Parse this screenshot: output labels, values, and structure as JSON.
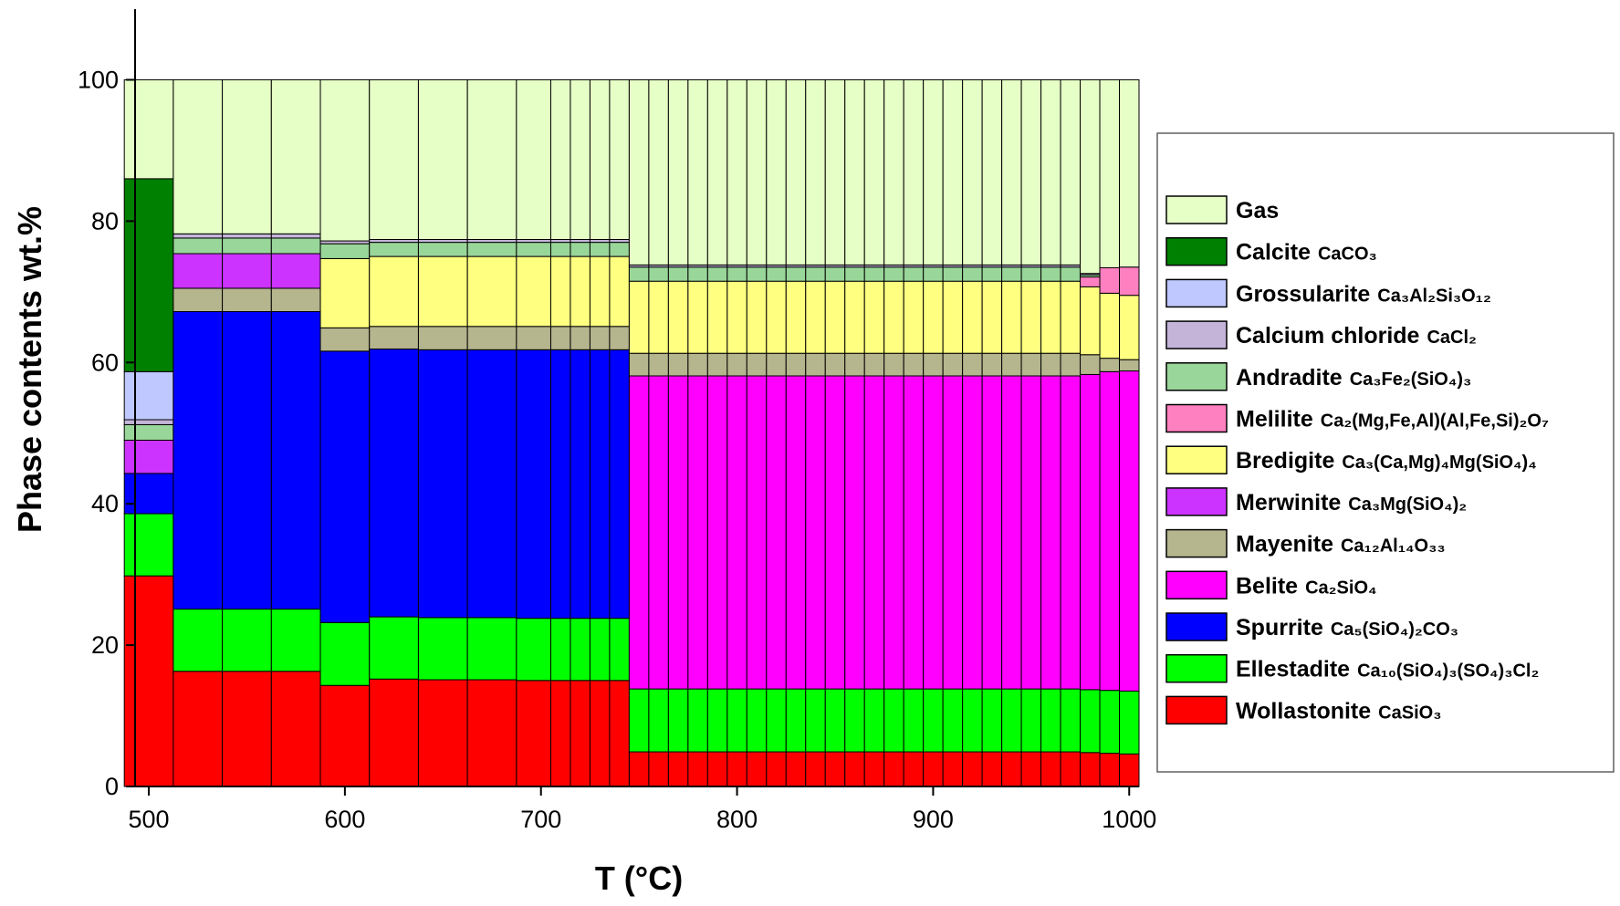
{
  "chart_data": {
    "type": "bar",
    "stacked": true,
    "xlabel": "T (°C)",
    "ylabel": "Phase contents wt.%",
    "xlim": [
      493,
      1005
    ],
    "ylim": [
      0,
      110
    ],
    "x_ticks": [
      500,
      600,
      700,
      800,
      900,
      1000
    ],
    "y_ticks": [
      0,
      20,
      40,
      60,
      80,
      100
    ],
    "x_tick_labels": [
      "500",
      "600",
      "700",
      "800",
      "900",
      "1000"
    ],
    "y_tick_labels": [
      "0",
      "20",
      "40",
      "60",
      "80",
      "100"
    ],
    "legend_position": "right",
    "series": [
      {
        "name": "Wollastonite",
        "formula": "CaSiO₃",
        "color": "#ff0000"
      },
      {
        "name": "Ellestadite",
        "formula": "Ca₁₀(SiO₄)₃(SO₄)₃Cl₂",
        "color": "#00ff00"
      },
      {
        "name": "Spurrite",
        "formula": "Ca₅(SiO₄)₂CO₃",
        "color": "#0000ff"
      },
      {
        "name": "Belite",
        "formula": "Ca₂SiO₄",
        "color": "#ff00ff"
      },
      {
        "name": "Mayenite",
        "formula": "Ca₁₂Al₁₄O₃₃",
        "color": "#b5b58e"
      },
      {
        "name": "Merwinite",
        "formula": "Ca₃Mg(SiO₄)₂",
        "color": "#cc33ff"
      },
      {
        "name": "Bredigite",
        "formula": "Ca₃(Ca,Mg)₄Mg(SiO₄)₄",
        "color": "#ffff80"
      },
      {
        "name": "Melilite",
        "formula": "Ca₂(Mg,Fe,Al)(Al,Fe,Si)₂O₇",
        "color": "#ff80c0"
      },
      {
        "name": "Andradite",
        "formula": "Ca₃Fe₂(SiO₄)₃",
        "color": "#99d699"
      },
      {
        "name": "Calcium chloride",
        "formula": "CaCl₂",
        "color": "#c3b4d8"
      },
      {
        "name": "Grossularite",
        "formula": "Ca₃Al₂Si₃O₁₂",
        "color": "#bfc8ff"
      },
      {
        "name": "Calcite",
        "formula": "CaCO₃",
        "color": "#008000"
      },
      {
        "name": "Gas",
        "formula": "",
        "color": "#e6ffc6"
      }
    ],
    "stacks": [
      {
        "x": 500,
        "values": {
          "Wollastonite": 29.8,
          "Ellestadite": 8.8,
          "Spurrite": 5.7,
          "Merwinite": 4.7,
          "Andradite": 2.2,
          "Calcium chloride": 0.7,
          "Grossularite": 6.8,
          "Calcite": 27.3,
          "Gas": 14
        }
      },
      {
        "x": 525,
        "values": {
          "Wollastonite": 16.3,
          "Ellestadite": 8.8,
          "Spurrite": 42.1,
          "Mayenite": 3.3,
          "Merwinite": 4.9,
          "Andradite": 2.2,
          "Calcium chloride": 0.6,
          "Gas": 21.8
        }
      },
      {
        "x": 550,
        "values": {
          "Wollastonite": 16.3,
          "Ellestadite": 8.8,
          "Spurrite": 42.1,
          "Mayenite": 3.3,
          "Merwinite": 4.9,
          "Andradite": 2.2,
          "Calcium chloride": 0.6,
          "Gas": 21.8
        }
      },
      {
        "x": 575,
        "values": {
          "Wollastonite": 16.3,
          "Ellestadite": 8.8,
          "Spurrite": 42.1,
          "Mayenite": 3.3,
          "Merwinite": 4.9,
          "Andradite": 2.2,
          "Calcium chloride": 0.6,
          "Gas": 21.8
        }
      },
      {
        "x": 600,
        "values": {
          "Wollastonite": 14.3,
          "Ellestadite": 8.9,
          "Spurrite": 38.4,
          "Mayenite": 3.3,
          "Bredigite": 9.8,
          "Andradite": 2.1,
          "Calcium chloride": 0.4,
          "Gas": 22.8
        }
      },
      {
        "x": 625,
        "values": {
          "Wollastonite": 15.2,
          "Ellestadite": 8.8,
          "Spurrite": 37.9,
          "Mayenite": 3.2,
          "Bredigite": 9.9,
          "Andradite": 2.0,
          "Calcium chloride": 0.4,
          "Gas": 22.6
        }
      },
      {
        "x": 650,
        "values": {
          "Wollastonite": 15.1,
          "Ellestadite": 8.8,
          "Spurrite": 37.9,
          "Mayenite": 3.3,
          "Bredigite": 9.9,
          "Andradite": 2.0,
          "Calcium chloride": 0.4,
          "Gas": 22.6
        }
      },
      {
        "x": 675,
        "values": {
          "Wollastonite": 15.1,
          "Ellestadite": 8.8,
          "Spurrite": 37.9,
          "Mayenite": 3.3,
          "Bredigite": 9.9,
          "Andradite": 2.0,
          "Calcium chloride": 0.4,
          "Gas": 22.6
        }
      },
      {
        "x": 700,
        "values": {
          "Wollastonite": 15.0,
          "Ellestadite": 8.8,
          "Spurrite": 38.0,
          "Mayenite": 3.3,
          "Bredigite": 9.9,
          "Andradite": 2.0,
          "Calcium chloride": 0.4,
          "Gas": 22.6
        }
      },
      {
        "x": 710,
        "values": {
          "Wollastonite": 15.0,
          "Ellestadite": 8.8,
          "Spurrite": 38.0,
          "Mayenite": 3.3,
          "Bredigite": 9.9,
          "Andradite": 2.0,
          "Calcium chloride": 0.4,
          "Gas": 22.6
        }
      },
      {
        "x": 720,
        "values": {
          "Wollastonite": 15.0,
          "Ellestadite": 8.8,
          "Spurrite": 38.0,
          "Mayenite": 3.3,
          "Bredigite": 9.9,
          "Andradite": 2.0,
          "Calcium chloride": 0.4,
          "Gas": 22.6
        }
      },
      {
        "x": 730,
        "values": {
          "Wollastonite": 15.0,
          "Ellestadite": 8.8,
          "Spurrite": 38.0,
          "Mayenite": 3.3,
          "Bredigite": 9.9,
          "Andradite": 2.0,
          "Calcium chloride": 0.4,
          "Gas": 22.6
        }
      },
      {
        "x": 740,
        "values": {
          "Wollastonite": 15.0,
          "Ellestadite": 8.8,
          "Spurrite": 38.0,
          "Mayenite": 3.3,
          "Bredigite": 9.9,
          "Andradite": 2.0,
          "Calcium chloride": 0.4,
          "Gas": 22.6
        }
      },
      {
        "x": 750,
        "values": {
          "Wollastonite": 4.9,
          "Ellestadite": 8.9,
          "Belite": 44.3,
          "Mayenite": 3.2,
          "Bredigite": 10.2,
          "Andradite": 2.0,
          "Calcium chloride": 0.3,
          "Gas": 26.2
        }
      },
      {
        "x": 760,
        "values": {
          "Wollastonite": 4.9,
          "Ellestadite": 8.9,
          "Belite": 44.3,
          "Mayenite": 3.2,
          "Bredigite": 10.2,
          "Andradite": 2.0,
          "Calcium chloride": 0.3,
          "Gas": 26.2
        }
      },
      {
        "x": 770,
        "values": {
          "Wollastonite": 4.9,
          "Ellestadite": 8.9,
          "Belite": 44.3,
          "Mayenite": 3.2,
          "Bredigite": 10.2,
          "Andradite": 2.0,
          "Calcium chloride": 0.3,
          "Gas": 26.2
        }
      },
      {
        "x": 780,
        "values": {
          "Wollastonite": 4.9,
          "Ellestadite": 8.9,
          "Belite": 44.3,
          "Mayenite": 3.2,
          "Bredigite": 10.2,
          "Andradite": 2.0,
          "Calcium chloride": 0.3,
          "Gas": 26.2
        }
      },
      {
        "x": 790,
        "values": {
          "Wollastonite": 4.9,
          "Ellestadite": 8.9,
          "Belite": 44.3,
          "Mayenite": 3.2,
          "Bredigite": 10.2,
          "Andradite": 2.0,
          "Calcium chloride": 0.3,
          "Gas": 26.2
        }
      },
      {
        "x": 800,
        "values": {
          "Wollastonite": 4.9,
          "Ellestadite": 8.9,
          "Belite": 44.3,
          "Mayenite": 3.2,
          "Bredigite": 10.2,
          "Andradite": 2.0,
          "Calcium chloride": 0.3,
          "Gas": 26.2
        }
      },
      {
        "x": 810,
        "values": {
          "Wollastonite": 4.9,
          "Ellestadite": 8.9,
          "Belite": 44.3,
          "Mayenite": 3.2,
          "Bredigite": 10.2,
          "Andradite": 2.0,
          "Calcium chloride": 0.3,
          "Gas": 26.2
        }
      },
      {
        "x": 820,
        "values": {
          "Wollastonite": 4.9,
          "Ellestadite": 8.9,
          "Belite": 44.3,
          "Mayenite": 3.2,
          "Bredigite": 10.2,
          "Andradite": 2.0,
          "Calcium chloride": 0.3,
          "Gas": 26.2
        }
      },
      {
        "x": 830,
        "values": {
          "Wollastonite": 4.9,
          "Ellestadite": 8.9,
          "Belite": 44.3,
          "Mayenite": 3.2,
          "Bredigite": 10.2,
          "Andradite": 2.0,
          "Calcium chloride": 0.3,
          "Gas": 26.2
        }
      },
      {
        "x": 840,
        "values": {
          "Wollastonite": 4.9,
          "Ellestadite": 8.9,
          "Belite": 44.3,
          "Mayenite": 3.2,
          "Bredigite": 10.2,
          "Andradite": 2.0,
          "Calcium chloride": 0.3,
          "Gas": 26.2
        }
      },
      {
        "x": 850,
        "values": {
          "Wollastonite": 4.9,
          "Ellestadite": 8.9,
          "Belite": 44.3,
          "Mayenite": 3.2,
          "Bredigite": 10.2,
          "Andradite": 2.0,
          "Calcium chloride": 0.3,
          "Gas": 26.2
        }
      },
      {
        "x": 860,
        "values": {
          "Wollastonite": 4.9,
          "Ellestadite": 8.9,
          "Belite": 44.3,
          "Mayenite": 3.2,
          "Bredigite": 10.2,
          "Andradite": 2.0,
          "Calcium chloride": 0.3,
          "Gas": 26.2
        }
      },
      {
        "x": 870,
        "values": {
          "Wollastonite": 4.9,
          "Ellestadite": 8.9,
          "Belite": 44.3,
          "Mayenite": 3.2,
          "Bredigite": 10.2,
          "Andradite": 2.0,
          "Calcium chloride": 0.3,
          "Gas": 26.2
        }
      },
      {
        "x": 880,
        "values": {
          "Wollastonite": 4.9,
          "Ellestadite": 8.9,
          "Belite": 44.3,
          "Mayenite": 3.2,
          "Bredigite": 10.2,
          "Andradite": 2.0,
          "Calcium chloride": 0.3,
          "Gas": 26.2
        }
      },
      {
        "x": 890,
        "values": {
          "Wollastonite": 4.9,
          "Ellestadite": 8.9,
          "Belite": 44.3,
          "Mayenite": 3.2,
          "Bredigite": 10.2,
          "Andradite": 2.0,
          "Calcium chloride": 0.3,
          "Gas": 26.2
        }
      },
      {
        "x": 900,
        "values": {
          "Wollastonite": 4.9,
          "Ellestadite": 8.9,
          "Belite": 44.3,
          "Mayenite": 3.2,
          "Bredigite": 10.2,
          "Andradite": 2.0,
          "Calcium chloride": 0.3,
          "Gas": 26.2
        }
      },
      {
        "x": 910,
        "values": {
          "Wollastonite": 4.9,
          "Ellestadite": 8.9,
          "Belite": 44.3,
          "Mayenite": 3.2,
          "Bredigite": 10.2,
          "Andradite": 2.0,
          "Calcium chloride": 0.3,
          "Gas": 26.2
        }
      },
      {
        "x": 920,
        "values": {
          "Wollastonite": 4.9,
          "Ellestadite": 8.9,
          "Belite": 44.3,
          "Mayenite": 3.2,
          "Bredigite": 10.2,
          "Andradite": 2.0,
          "Calcium chloride": 0.3,
          "Gas": 26.2
        }
      },
      {
        "x": 930,
        "values": {
          "Wollastonite": 4.9,
          "Ellestadite": 8.9,
          "Belite": 44.3,
          "Mayenite": 3.2,
          "Bredigite": 10.2,
          "Andradite": 2.0,
          "Calcium chloride": 0.3,
          "Gas": 26.2
        }
      },
      {
        "x": 940,
        "values": {
          "Wollastonite": 4.9,
          "Ellestadite": 8.9,
          "Belite": 44.3,
          "Mayenite": 3.2,
          "Bredigite": 10.2,
          "Andradite": 2.0,
          "Calcium chloride": 0.3,
          "Gas": 26.2
        }
      },
      {
        "x": 950,
        "values": {
          "Wollastonite": 4.9,
          "Ellestadite": 8.9,
          "Belite": 44.3,
          "Mayenite": 3.2,
          "Bredigite": 10.2,
          "Andradite": 2.0,
          "Calcium chloride": 0.3,
          "Gas": 26.2
        }
      },
      {
        "x": 960,
        "values": {
          "Wollastonite": 4.9,
          "Ellestadite": 8.9,
          "Belite": 44.3,
          "Mayenite": 3.2,
          "Bredigite": 10.2,
          "Andradite": 2.0,
          "Calcium chloride": 0.3,
          "Gas": 26.2
        }
      },
      {
        "x": 970,
        "values": {
          "Wollastonite": 4.9,
          "Ellestadite": 8.9,
          "Belite": 44.3,
          "Mayenite": 3.2,
          "Bredigite": 10.2,
          "Andradite": 2.0,
          "Calcium chloride": 0.3,
          "Gas": 26.2
        }
      },
      {
        "x": 980,
        "values": {
          "Wollastonite": 4.8,
          "Ellestadite": 8.9,
          "Belite": 44.6,
          "Mayenite": 2.8,
          "Bredigite": 9.6,
          "Melilite": 1.4,
          "Andradite": 0.3,
          "Calcium chloride": 0.2,
          "Gas": 27.4
        }
      },
      {
        "x": 990,
        "values": {
          "Wollastonite": 4.7,
          "Ellestadite": 8.9,
          "Belite": 45.1,
          "Mayenite": 1.9,
          "Bredigite": 9.2,
          "Melilite": 3.6,
          "Gas": 26.6
        }
      },
      {
        "x": 1000,
        "values": {
          "Wollastonite": 4.6,
          "Ellestadite": 8.9,
          "Belite": 45.3,
          "Mayenite": 1.6,
          "Bredigite": 9.1,
          "Melilite": 4.0,
          "Gas": 26.5
        }
      }
    ]
  },
  "legend": {
    "entries": [
      {
        "name": "Gas",
        "formula": ""
      },
      {
        "name": "Calcite",
        "formula": "CaCO₃"
      },
      {
        "name": "Grossularite",
        "formula": "Ca₃Al₂Si₃O₁₂"
      },
      {
        "name": "Calcium chloride",
        "formula": "CaCl₂"
      },
      {
        "name": "Andradite",
        "formula": "Ca₃Fe₂(SiO₄)₃"
      },
      {
        "name": "Melilite",
        "formula": "Ca₂(Mg,Fe,Al)(Al,Fe,Si)₂O₇"
      },
      {
        "name": "Bredigite",
        "formula": "Ca₃(Ca,Mg)₄Mg(SiO₄)₄"
      },
      {
        "name": "Merwinite",
        "formula": "Ca₃Mg(SiO₄)₂"
      },
      {
        "name": "Mayenite",
        "formula": "Ca₁₂Al₁₄O₃₃"
      },
      {
        "name": "Belite",
        "formula": "Ca₂SiO₄"
      },
      {
        "name": "Spurrite",
        "formula": "Ca₅(SiO₄)₂CO₃"
      },
      {
        "name": "Ellestadite",
        "formula": "Ca₁₀(SiO₄)₃(SO₄)₃Cl₂"
      },
      {
        "name": "Wollastonite",
        "formula": "CaSiO₃"
      }
    ]
  }
}
